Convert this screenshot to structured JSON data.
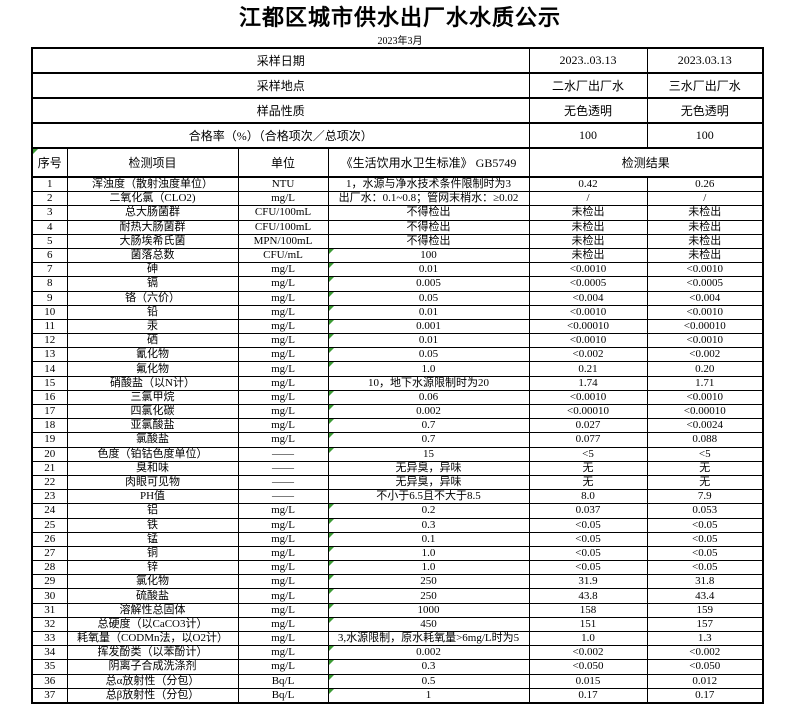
{
  "title": "江都区城市供水出厂水水质公示",
  "subtitle": "2023年3月",
  "colors": {
    "indicator_green": "#3c9b35"
  },
  "info_rows": [
    {
      "label": "采样日期",
      "col1": "2023..03.13",
      "col2": "2023.03.13"
    },
    {
      "label": "采样地点",
      "col1": "二水厂出厂水",
      "col2": "三水厂出厂水"
    },
    {
      "label": "样品性质",
      "col1": "无色透明",
      "col2": "无色透明"
    },
    {
      "label": "合格率（%）（合格项次／总项次）",
      "col1": "100",
      "col2": "100"
    }
  ],
  "column_headers": {
    "index": "序号",
    "item": "检测项目",
    "unit": "单位",
    "standard": "《生活饮用水卫生标准》 GB5749",
    "result": "检测结果"
  },
  "rows": [
    {
      "no": "1",
      "item": "浑浊度（散射浊度单位）",
      "unit": "NTU",
      "standard": "1，水源与净水技术条件限制时为3",
      "r1": "0.42",
      "r2": "0.26",
      "marker": false
    },
    {
      "no": "2",
      "item": "二氧化氯（CLO2)",
      "unit": "mg/L",
      "standard": "出厂水：0.1~0.8；管网末梢水：≥0.02",
      "r1": "/",
      "r2": "/",
      "marker": false
    },
    {
      "no": "3",
      "item": "总大肠菌群",
      "unit": "CFU/100mL",
      "standard": "不得检出",
      "r1": "未检出",
      "r2": "未检出",
      "marker": false
    },
    {
      "no": "4",
      "item": "耐热大肠菌群",
      "unit": "CFU/100mL",
      "standard": "不得检出",
      "r1": "未检出",
      "r2": "未检出",
      "marker": false
    },
    {
      "no": "5",
      "item": "大肠埃希氏菌",
      "unit": "MPN/100mL",
      "standard": "不得检出",
      "r1": "未检出",
      "r2": "未检出",
      "marker": false
    },
    {
      "no": "6",
      "item": "菌落总数",
      "unit": "CFU/mL",
      "standard": "100",
      "r1": "未检出",
      "r2": "未检出",
      "marker": true
    },
    {
      "no": "7",
      "item": "砷",
      "unit": "mg/L",
      "standard": "0.01",
      "r1": "<0.0010",
      "r2": "<0.0010",
      "marker": true
    },
    {
      "no": "8",
      "item": "镉",
      "unit": "mg/L",
      "standard": "0.005",
      "r1": "<0.0005",
      "r2": "<0.0005",
      "marker": true
    },
    {
      "no": "9",
      "item": "铬（六价）",
      "unit": "mg/L",
      "standard": "0.05",
      "r1": "<0.004",
      "r2": "<0.004",
      "marker": true
    },
    {
      "no": "10",
      "item": "铅",
      "unit": "mg/L",
      "standard": "0.01",
      "r1": "<0.0010",
      "r2": "<0.0010",
      "marker": true
    },
    {
      "no": "11",
      "item": "汞",
      "unit": "mg/L",
      "standard": "0.001",
      "r1": "<0.00010",
      "r2": "<0.00010",
      "marker": true
    },
    {
      "no": "12",
      "item": "硒",
      "unit": "mg/L",
      "standard": "0.01",
      "r1": "<0.0010",
      "r2": "<0.0010",
      "marker": true
    },
    {
      "no": "13",
      "item": "氰化物",
      "unit": "mg/L",
      "standard": "0.05",
      "r1": "<0.002",
      "r2": "<0.002",
      "marker": true
    },
    {
      "no": "14",
      "item": "氟化物",
      "unit": "mg/L",
      "standard": "1.0",
      "r1": "0.21",
      "r2": "0.20",
      "marker": true
    },
    {
      "no": "15",
      "item": "硝酸盐（以N计）",
      "unit": "mg/L",
      "standard": "10，地下水源限制时为20",
      "r1": "1.74",
      "r2": "1.71",
      "marker": false
    },
    {
      "no": "16",
      "item": "三氯甲烷",
      "unit": "mg/L",
      "standard": "0.06",
      "r1": "<0.0010",
      "r2": "<0.0010",
      "marker": true
    },
    {
      "no": "17",
      "item": "四氯化碳",
      "unit": "mg/L",
      "standard": "0.002",
      "r1": "<0.00010",
      "r2": "<0.00010",
      "marker": true
    },
    {
      "no": "18",
      "item": "亚氯酸盐",
      "unit": "mg/L",
      "standard": "0.7",
      "r1": "0.027",
      "r2": "<0.0024",
      "marker": true
    },
    {
      "no": "19",
      "item": "氯酸盐",
      "unit": "mg/L",
      "standard": "0.7",
      "r1": "0.077",
      "r2": "0.088",
      "marker": true
    },
    {
      "no": "20",
      "item": "色度（铂钴色度单位）",
      "unit": "——",
      "standard": "15",
      "r1": "<5",
      "r2": "<5",
      "marker": true
    },
    {
      "no": "21",
      "item": "臭和味",
      "unit": "——",
      "standard": "无异臭，异味",
      "r1": "无",
      "r2": "无",
      "marker": false
    },
    {
      "no": "22",
      "item": "肉眼可见物",
      "unit": "——",
      "standard": "无异臭，异味",
      "r1": "无",
      "r2": "无",
      "marker": false
    },
    {
      "no": "23",
      "item": "PH值",
      "unit": "——",
      "standard": "不小于6.5且不大于8.5",
      "r1": "8.0",
      "r2": "7.9",
      "marker": false
    },
    {
      "no": "24",
      "item": "铝",
      "unit": "mg/L",
      "standard": "0.2",
      "r1": "0.037",
      "r2": "0.053",
      "marker": true
    },
    {
      "no": "25",
      "item": "铁",
      "unit": "mg/L",
      "standard": "0.3",
      "r1": "<0.05",
      "r2": "<0.05",
      "marker": true
    },
    {
      "no": "26",
      "item": "锰",
      "unit": "mg/L",
      "standard": "0.1",
      "r1": "<0.05",
      "r2": "<0.05",
      "marker": true
    },
    {
      "no": "27",
      "item": "铜",
      "unit": "mg/L",
      "standard": "1.0",
      "r1": "<0.05",
      "r2": "<0.05",
      "marker": true
    },
    {
      "no": "28",
      "item": "锌",
      "unit": "mg/L",
      "standard": "1.0",
      "r1": "<0.05",
      "r2": "<0.05",
      "marker": true
    },
    {
      "no": "29",
      "item": "氯化物",
      "unit": "mg/L",
      "standard": "250",
      "r1": "31.9",
      "r2": "31.8",
      "marker": true
    },
    {
      "no": "30",
      "item": "硫酸盐",
      "unit": "mg/L",
      "standard": "250",
      "r1": "43.8",
      "r2": "43.4",
      "marker": true
    },
    {
      "no": "31",
      "item": "溶解性总固体",
      "unit": "mg/L",
      "standard": "1000",
      "r1": "158",
      "r2": "159",
      "marker": true
    },
    {
      "no": "32",
      "item": "总硬度（以CaCO3计）",
      "unit": "mg/L",
      "standard": "450",
      "r1": "151",
      "r2": "157",
      "marker": true
    },
    {
      "no": "33",
      "item": "耗氧量（CODMn法，以O2计）",
      "unit": "mg/L",
      "standard": "3,水源限制，原水耗氧量>6mg/L时为5",
      "r1": "1.0",
      "r2": "1.3",
      "marker": false
    },
    {
      "no": "34",
      "item": "挥发酚类（以苯酚计）",
      "unit": "mg/L",
      "standard": "0.002",
      "r1": "<0.002",
      "r2": "<0.002",
      "marker": true
    },
    {
      "no": "35",
      "item": "阴离子合成洗涤剂",
      "unit": "mg/L",
      "standard": "0.3",
      "r1": "<0.050",
      "r2": "<0.050",
      "marker": true
    },
    {
      "no": "36",
      "item": "总α放射性（分包）",
      "unit": "Bq/L",
      "standard": "0.5",
      "r1": "0.015",
      "r2": "0.012",
      "marker": true
    },
    {
      "no": "37",
      "item": "总β放射性（分包）",
      "unit": "Bq/L",
      "standard": "1",
      "r1": "0.17",
      "r2": "0.17",
      "marker": true
    }
  ]
}
